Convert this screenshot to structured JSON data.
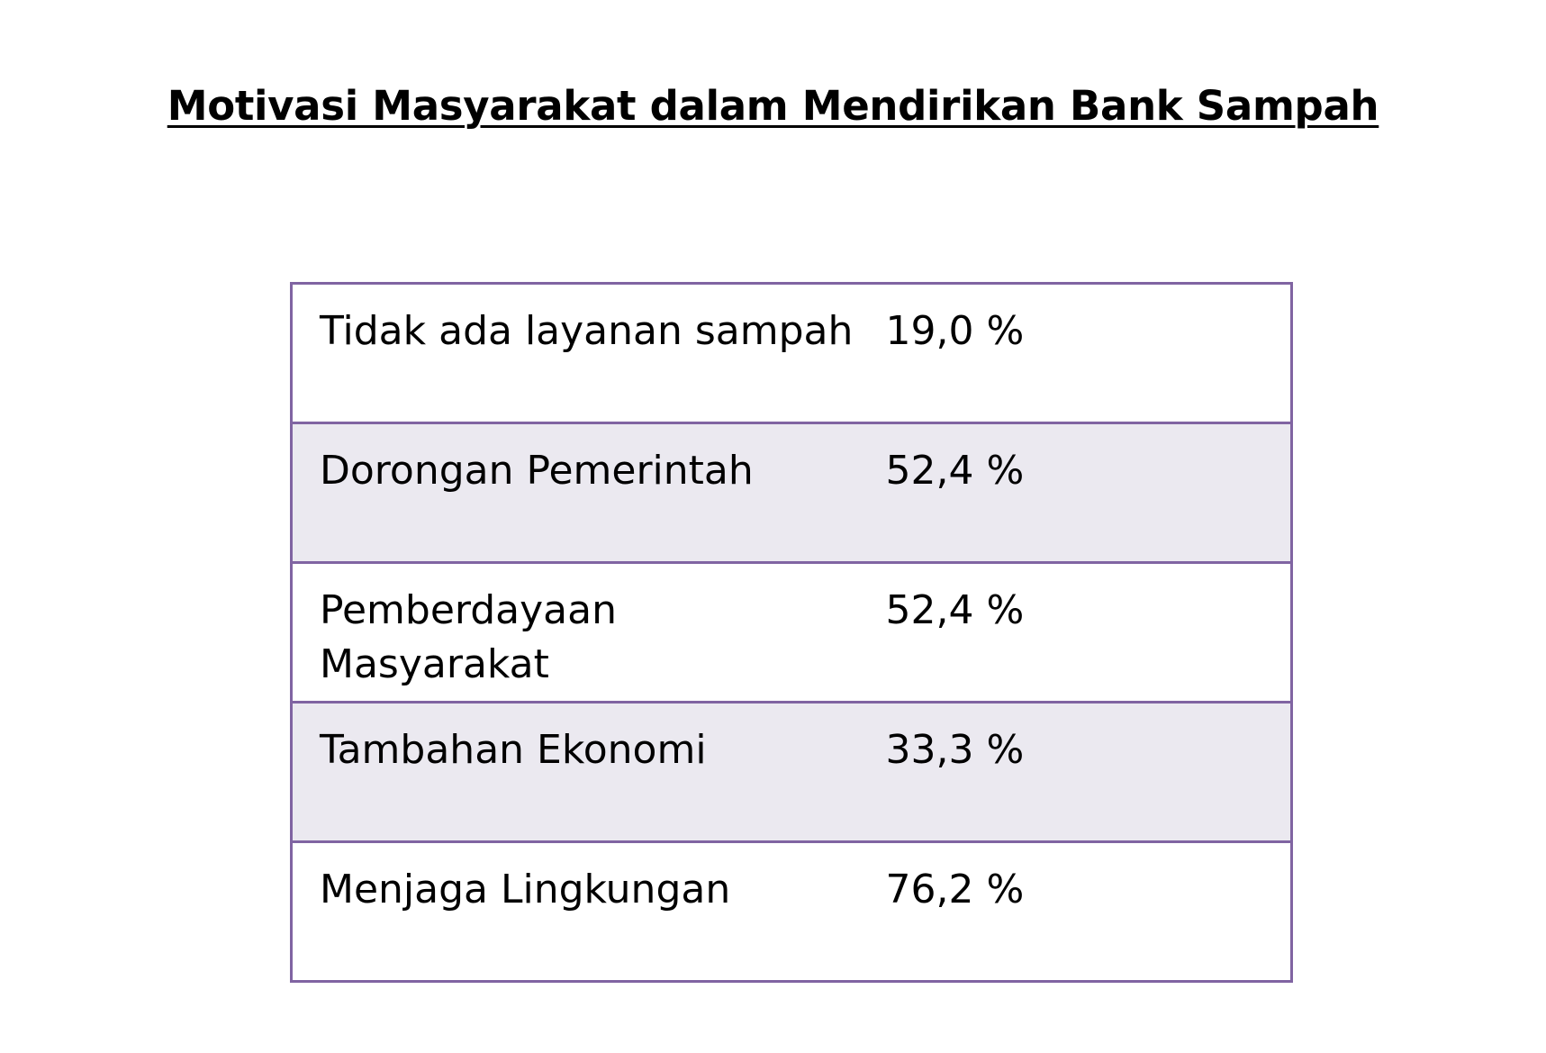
{
  "title": "Motivasi Masyarakat dalam Mendirikan Bank Sampah",
  "table": {
    "rows": [
      {
        "label": "Tidak ada layanan sampah",
        "value": "19,0 %"
      },
      {
        "label": "Dorongan Pemerintah",
        "value": "52,4 %"
      },
      {
        "label": "Pemberdayaan Masyarakat",
        "value": "52,4 %"
      },
      {
        "label": "Tambahan Ekonomi",
        "value": "33,3 %"
      },
      {
        "label": "Menjaga Lingkungan",
        "value": "76,2 %"
      }
    ]
  },
  "colors": {
    "border": "#8064a2",
    "alt_row_fill": "#ebe9f0"
  }
}
